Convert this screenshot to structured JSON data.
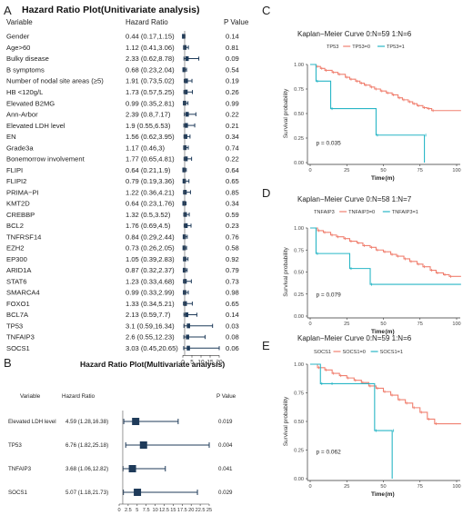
{
  "panels": {
    "a_letter": "A",
    "b_letter": "B",
    "c_letter": "C",
    "d_letter": "D",
    "e_letter": "E"
  },
  "colors": {
    "forest": "#1f3b5a",
    "km_group0": "#f08070",
    "km_group1": "#29b6c6",
    "axis": "#333333"
  },
  "chart_data": [
    {
      "id": "A",
      "type": "forest",
      "title": "Hazard Ratio Plot(Unitivariate analysis)",
      "col_variable": "Variable",
      "col_hr": "Hazard Ratio",
      "col_p": "P Value",
      "xlim": [
        0,
        20
      ],
      "xticks": [
        0,
        5,
        10,
        15,
        20
      ],
      "rows": [
        {
          "variable": "Gender",
          "hr_text": "0.44 (0.17,1.15)",
          "hr": 0.44,
          "lo": 0.17,
          "hi": 1.15,
          "p": "0.14"
        },
        {
          "variable": "Age>60",
          "hr_text": "1.12 (0.41,3.06)",
          "hr": 1.12,
          "lo": 0.41,
          "hi": 3.06,
          "p": "0.81"
        },
        {
          "variable": "Bulky disease",
          "hr_text": "2.33 (0.62,8.78)",
          "hr": 2.33,
          "lo": 0.62,
          "hi": 8.78,
          "p": "0.09"
        },
        {
          "variable": "B symptoms",
          "hr_text": "0.68 (0.23,2.04)",
          "hr": 0.68,
          "lo": 0.23,
          "hi": 2.04,
          "p": "0.54"
        },
        {
          "variable": "Number of nodal site areas (≥5)",
          "hr_text": "1.91 (0.73,5.02)",
          "hr": 1.91,
          "lo": 0.73,
          "hi": 5.02,
          "p": "0.19"
        },
        {
          "variable": "HB <120g/L",
          "hr_text": "1.73 (0.57,5.25)",
          "hr": 1.73,
          "lo": 0.57,
          "hi": 5.25,
          "p": "0.26"
        },
        {
          "variable": "Elevated B2MG",
          "hr_text": "0.99 (0.35,2.81)",
          "hr": 0.99,
          "lo": 0.35,
          "hi": 2.81,
          "p": "0.99"
        },
        {
          "variable": "Ann-Arbor",
          "hr_text": "2.39 (0.8,7.17)",
          "hr": 2.39,
          "lo": 0.8,
          "hi": 7.17,
          "p": "0.22"
        },
        {
          "variable": "Elevated LDH level",
          "hr_text": "1.9 (0.55,6.53)",
          "hr": 1.9,
          "lo": 0.55,
          "hi": 6.53,
          "p": "0.21"
        },
        {
          "variable": "EN",
          "hr_text": "1.56 (0.62,3.95)",
          "hr": 1.56,
          "lo": 0.62,
          "hi": 3.95,
          "p": "0.34"
        },
        {
          "variable": "Grade3a",
          "hr_text": "1.17 (0.46,3)",
          "hr": 1.17,
          "lo": 0.46,
          "hi": 3.0,
          "p": "0.74"
        },
        {
          "variable": "Bonemorrow involvement",
          "hr_text": "1.77 (0.65,4.81)",
          "hr": 1.77,
          "lo": 0.65,
          "hi": 4.81,
          "p": "0.22"
        },
        {
          "variable": "FLIPI",
          "hr_text": "0.64 (0.21,1.9)",
          "hr": 0.64,
          "lo": 0.21,
          "hi": 1.9,
          "p": "0.64"
        },
        {
          "variable": "FLIPI2",
          "hr_text": "0.79 (0.19,3.36)",
          "hr": 0.79,
          "lo": 0.19,
          "hi": 3.36,
          "p": "0.65"
        },
        {
          "variable": "PRIMA−PI",
          "hr_text": "1.22 (0.36,4.21)",
          "hr": 1.22,
          "lo": 0.36,
          "hi": 4.21,
          "p": "0.85"
        },
        {
          "variable": "KMT2D",
          "hr_text": "0.64 (0.23,1.76)",
          "hr": 0.64,
          "lo": 0.23,
          "hi": 1.76,
          "p": "0.34"
        },
        {
          "variable": "CREBBP",
          "hr_text": "1.32 (0.5,3.52)",
          "hr": 1.32,
          "lo": 0.5,
          "hi": 3.52,
          "p": "0.59"
        },
        {
          "variable": "BCL2",
          "hr_text": "1.76 (0.69,4.5)",
          "hr": 1.76,
          "lo": 0.69,
          "hi": 4.5,
          "p": "0.23"
        },
        {
          "variable": "TNFRSF14",
          "hr_text": "0.84 (0.29,2.44)",
          "hr": 0.84,
          "lo": 0.29,
          "hi": 2.44,
          "p": "0.76"
        },
        {
          "variable": "EZH2",
          "hr_text": "0.73 (0.26,2.05)",
          "hr": 0.73,
          "lo": 0.26,
          "hi": 2.05,
          "p": "0.58"
        },
        {
          "variable": "EP300",
          "hr_text": "1.05 (0.39,2.83)",
          "hr": 1.05,
          "lo": 0.39,
          "hi": 2.83,
          "p": "0.92"
        },
        {
          "variable": "ARID1A",
          "hr_text": "0.87 (0.32,2.37)",
          "hr": 0.87,
          "lo": 0.32,
          "hi": 2.37,
          "p": "0.79"
        },
        {
          "variable": "STAT6",
          "hr_text": "1.23 (0.33,4.68)",
          "hr": 1.23,
          "lo": 0.33,
          "hi": 4.68,
          "p": "0.73"
        },
        {
          "variable": "SMARCA4",
          "hr_text": "0.99 (0.33,2.99)",
          "hr": 0.99,
          "lo": 0.33,
          "hi": 2.99,
          "p": "0.98"
        },
        {
          "variable": "FOXO1",
          "hr_text": "1.33 (0.34,5.21)",
          "hr": 1.33,
          "lo": 0.34,
          "hi": 5.21,
          "p": "0.65"
        },
        {
          "variable": "BCL7A",
          "hr_text": "2.13 (0.59,7.7)",
          "hr": 2.13,
          "lo": 0.59,
          "hi": 7.7,
          "p": "0.14"
        },
        {
          "variable": "TP53",
          "hr_text": "3.1 (0.59,16.34)",
          "hr": 3.1,
          "lo": 0.59,
          "hi": 16.34,
          "p": "0.03"
        },
        {
          "variable": "TNFAIP3",
          "hr_text": "2.6 (0.55,12.23)",
          "hr": 2.6,
          "lo": 0.55,
          "hi": 12.23,
          "p": "0.08"
        },
        {
          "variable": "SOCS1",
          "hr_text": "3.03 (0.45,20.65)",
          "hr": 3.03,
          "lo": 0.45,
          "hi": 20.65,
          "p": "0.06"
        }
      ]
    },
    {
      "id": "B",
      "type": "forest",
      "title": "Hazard Ratio Plot(Multivariate analysis)",
      "col_variable": "Variable",
      "col_hr": "Hazard Ratio",
      "col_p": "P Value",
      "xlim": [
        0,
        25
      ],
      "xticks": [
        0,
        2.5,
        5,
        7.5,
        10,
        12.5,
        15,
        17.5,
        20,
        22.5,
        25
      ],
      "xtick_labels": [
        "0",
        "2.5",
        "5",
        "7.5",
        "10",
        "12.5",
        "15",
        "17.5",
        "20",
        "22.5",
        "25"
      ],
      "rows": [
        {
          "variable": "Elevated LDH level",
          "hr_text": "4.59 (1.28,16.38)",
          "hr": 4.59,
          "lo": 1.28,
          "hi": 16.38,
          "p": "0.019"
        },
        {
          "variable": "TP53",
          "hr_text": "6.76 (1.82,25.18)",
          "hr": 6.76,
          "lo": 1.82,
          "hi": 25.18,
          "p": "0.004"
        },
        {
          "variable": "TNFAIP3",
          "hr_text": "3.68 (1.06,12.82)",
          "hr": 3.68,
          "lo": 1.06,
          "hi": 12.82,
          "p": "0.041"
        },
        {
          "variable": "SOCS1",
          "hr_text": "5.07 (1.18,21.73)",
          "hr": 5.07,
          "lo": 1.18,
          "hi": 21.73,
          "p": "0.029"
        }
      ]
    },
    {
      "id": "C",
      "type": "line",
      "title": "Kaplan−Meier Curve 0:N=59 1:N=6",
      "legend_title": "TP53",
      "legend_labels": [
        "TP53=0",
        "TP53=1"
      ],
      "ylabel": "Survival probability",
      "xlabel": "Time",
      "xunit": "(m)",
      "xlim": [
        0,
        100
      ],
      "ylim": [
        0,
        1
      ],
      "xticks": [
        0,
        25,
        50,
        75,
        100
      ],
      "yticks": [
        0,
        0.25,
        0.5,
        0.75,
        1.0
      ],
      "ytick_labels": [
        "0.00",
        "0.25",
        "0.50",
        "0.75",
        "1.00"
      ],
      "pvalue": "p = 0.035",
      "series": [
        {
          "x": [
            0,
            4,
            7,
            10,
            15,
            19,
            24,
            27,
            31,
            34,
            37,
            41,
            44,
            48,
            52,
            56,
            60,
            63,
            67,
            70,
            73,
            77,
            80,
            83,
            103
          ],
          "y": [
            1.0,
            0.98,
            0.96,
            0.94,
            0.92,
            0.9,
            0.87,
            0.85,
            0.83,
            0.81,
            0.79,
            0.77,
            0.75,
            0.73,
            0.71,
            0.69,
            0.66,
            0.64,
            0.62,
            0.6,
            0.58,
            0.56,
            0.55,
            0.53,
            0.53
          ]
        },
        {
          "x": [
            0,
            4,
            14,
            45,
            78,
            78
          ],
          "y": [
            1.0,
            0.83,
            0.55,
            0.28,
            0.28,
            0.0
          ]
        }
      ]
    },
    {
      "id": "D",
      "type": "line",
      "title": "Kaplan−Meier Curve 0:N=58 1:N=7",
      "legend_title": "TNFAIP3",
      "legend_labels": [
        "TNFAIP3=0",
        "TNFAIP3=1"
      ],
      "ylabel": "Survival probability",
      "xlabel": "Time",
      "xunit": "(m)",
      "xlim": [
        0,
        100
      ],
      "ylim": [
        0,
        1
      ],
      "xticks": [
        0,
        25,
        50,
        75,
        100
      ],
      "yticks": [
        0,
        0.25,
        0.5,
        0.75,
        1.0
      ],
      "ytick_labels": [
        "0.00",
        "0.25",
        "0.50",
        "0.75",
        "1.00"
      ],
      "pvalue": "p = 0.079",
      "series": [
        {
          "x": [
            0,
            5,
            9,
            14,
            18,
            23,
            27,
            32,
            36,
            41,
            45,
            50,
            55,
            59,
            64,
            68,
            73,
            77,
            82,
            86,
            91,
            95,
            103
          ],
          "y": [
            1.0,
            0.97,
            0.95,
            0.92,
            0.9,
            0.88,
            0.85,
            0.83,
            0.8,
            0.78,
            0.75,
            0.73,
            0.7,
            0.68,
            0.65,
            0.62,
            0.59,
            0.56,
            0.52,
            0.49,
            0.47,
            0.45,
            0.45
          ]
        },
        {
          "x": [
            0,
            4,
            27,
            41,
            103
          ],
          "y": [
            1.0,
            0.71,
            0.54,
            0.36,
            0.36
          ]
        }
      ]
    },
    {
      "id": "E",
      "type": "line",
      "title": "Kaplan−Meier Curve 0:N=59 1:N=6",
      "legend_title": "SOCS1",
      "legend_labels": [
        "SOCS1=0",
        "SOCS1=1"
      ],
      "ylabel": "Survival probability",
      "xlabel": "Time",
      "xunit": "(m)",
      "xlim": [
        0,
        100
      ],
      "ylim": [
        0,
        1
      ],
      "xticks": [
        0,
        25,
        50,
        75,
        100
      ],
      "yticks": [
        0,
        0.25,
        0.5,
        0.75,
        1.0
      ],
      "ytick_labels": [
        "0.00",
        "0.25",
        "0.50",
        "0.75",
        "1.00"
      ],
      "pvalue": "p = 0.062",
      "series": [
        {
          "x": [
            0,
            5,
            10,
            15,
            20,
            25,
            30,
            35,
            40,
            45,
            50,
            55,
            60,
            65,
            70,
            75,
            80,
            85,
            103
          ],
          "y": [
            1.0,
            0.97,
            0.95,
            0.92,
            0.9,
            0.88,
            0.86,
            0.84,
            0.81,
            0.79,
            0.76,
            0.73,
            0.69,
            0.66,
            0.62,
            0.58,
            0.52,
            0.48,
            0.48
          ]
        },
        {
          "x": [
            0,
            7,
            14,
            44,
            56,
            56
          ],
          "y": [
            1.0,
            0.83,
            0.83,
            0.42,
            0.42,
            0.0
          ]
        }
      ]
    }
  ]
}
